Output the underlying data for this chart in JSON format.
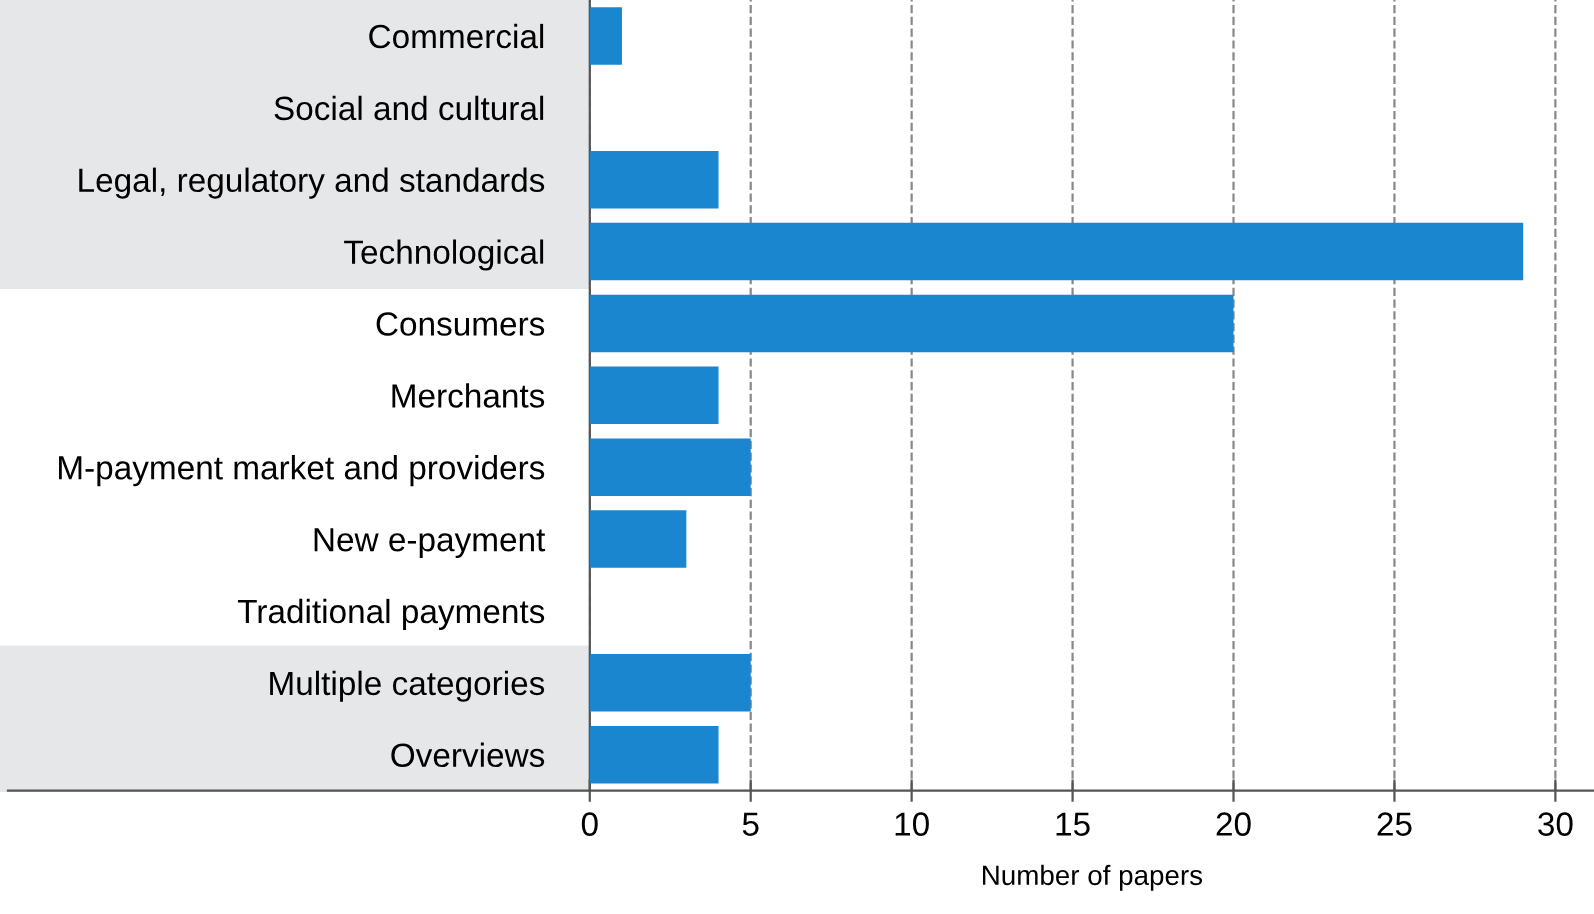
{
  "chart_data": {
    "type": "bar",
    "orientation": "horizontal",
    "xlabel": "Number of papers",
    "categories": [
      "Commercial",
      "Social and cultural",
      "Legal, regulatory and standards",
      "Technological",
      "Consumers",
      "Merchants",
      "M-payment market and providers",
      "New e-payment",
      "Traditional payments",
      "Multiple categories",
      "Overviews"
    ],
    "values": [
      1,
      0,
      4,
      29,
      20,
      4,
      5,
      3,
      0,
      5,
      4
    ],
    "color": "#1a86cf",
    "xlim": [
      0,
      31.2
    ],
    "xticks": [
      0,
      5,
      10,
      15,
      20,
      25,
      30
    ],
    "grid": "x",
    "line_style": "dashed"
  }
}
